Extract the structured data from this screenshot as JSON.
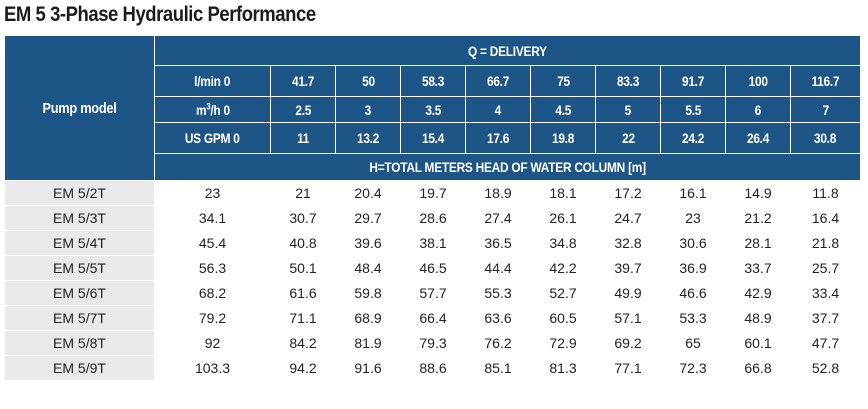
{
  "title": "EM 5 3-Phase Hydraulic Performance",
  "header": {
    "pump_model": "Pump model",
    "delivery": "Q = DELIVERY",
    "head_label": "H=TOTAL METERS HEAD OF WATER COLUMN [m]",
    "units": [
      {
        "label": "l/min 0",
        "values": [
          "41.7",
          "50",
          "58.3",
          "66.7",
          "75",
          "83.3",
          "91.7",
          "100",
          "116.7"
        ]
      },
      {
        "label_pre": "m",
        "label_sup": "3",
        "label_post": "/h 0",
        "values": [
          "2.5",
          "3",
          "3.5",
          "4",
          "4.5",
          "5",
          "5.5",
          "6",
          "7"
        ]
      },
      {
        "label": "US GPM 0",
        "values": [
          "11",
          "13.2",
          "15.4",
          "17.6",
          "19.8",
          "22",
          "24.2",
          "26.4",
          "30.8"
        ]
      }
    ]
  },
  "rows": [
    {
      "model": "EM 5/2T",
      "values": [
        "23",
        "21",
        "20.4",
        "19.7",
        "18.9",
        "18.1",
        "17.2",
        "16.1",
        "14.9",
        "11.8"
      ]
    },
    {
      "model": "EM 5/3T",
      "values": [
        "34.1",
        "30.7",
        "29.7",
        "28.6",
        "27.4",
        "26.1",
        "24.7",
        "23",
        "21.2",
        "16.4"
      ]
    },
    {
      "model": "EM 5/4T",
      "values": [
        "45.4",
        "40.8",
        "39.6",
        "38.1",
        "36.5",
        "34.8",
        "32.8",
        "30.6",
        "28.1",
        "21.8"
      ]
    },
    {
      "model": "EM 5/5T",
      "values": [
        "56.3",
        "50.1",
        "48.4",
        "46.5",
        "44.4",
        "42.2",
        "39.7",
        "36.9",
        "33.7",
        "25.7"
      ]
    },
    {
      "model": "EM 5/6T",
      "values": [
        "68.2",
        "61.6",
        "59.8",
        "57.7",
        "55.3",
        "52.7",
        "49.9",
        "46.6",
        "42.9",
        "33.4"
      ]
    },
    {
      "model": "EM 5/7T",
      "values": [
        "79.2",
        "71.1",
        "68.9",
        "66.4",
        "63.6",
        "60.5",
        "57.1",
        "53.3",
        "48.9",
        "37.7"
      ]
    },
    {
      "model": "EM 5/8T",
      "values": [
        "92",
        "84.2",
        "81.9",
        "79.3",
        "76.2",
        "72.9",
        "69.2",
        "65",
        "60.1",
        "47.7"
      ]
    },
    {
      "model": "EM 5/9T",
      "values": [
        "103.3",
        "94.2",
        "91.6",
        "88.6",
        "85.1",
        "81.3",
        "77.1",
        "72.3",
        "66.8",
        "52.8"
      ]
    }
  ],
  "colors": {
    "header_bg": "#1d5587",
    "model_bg": "#e9e9e9"
  }
}
